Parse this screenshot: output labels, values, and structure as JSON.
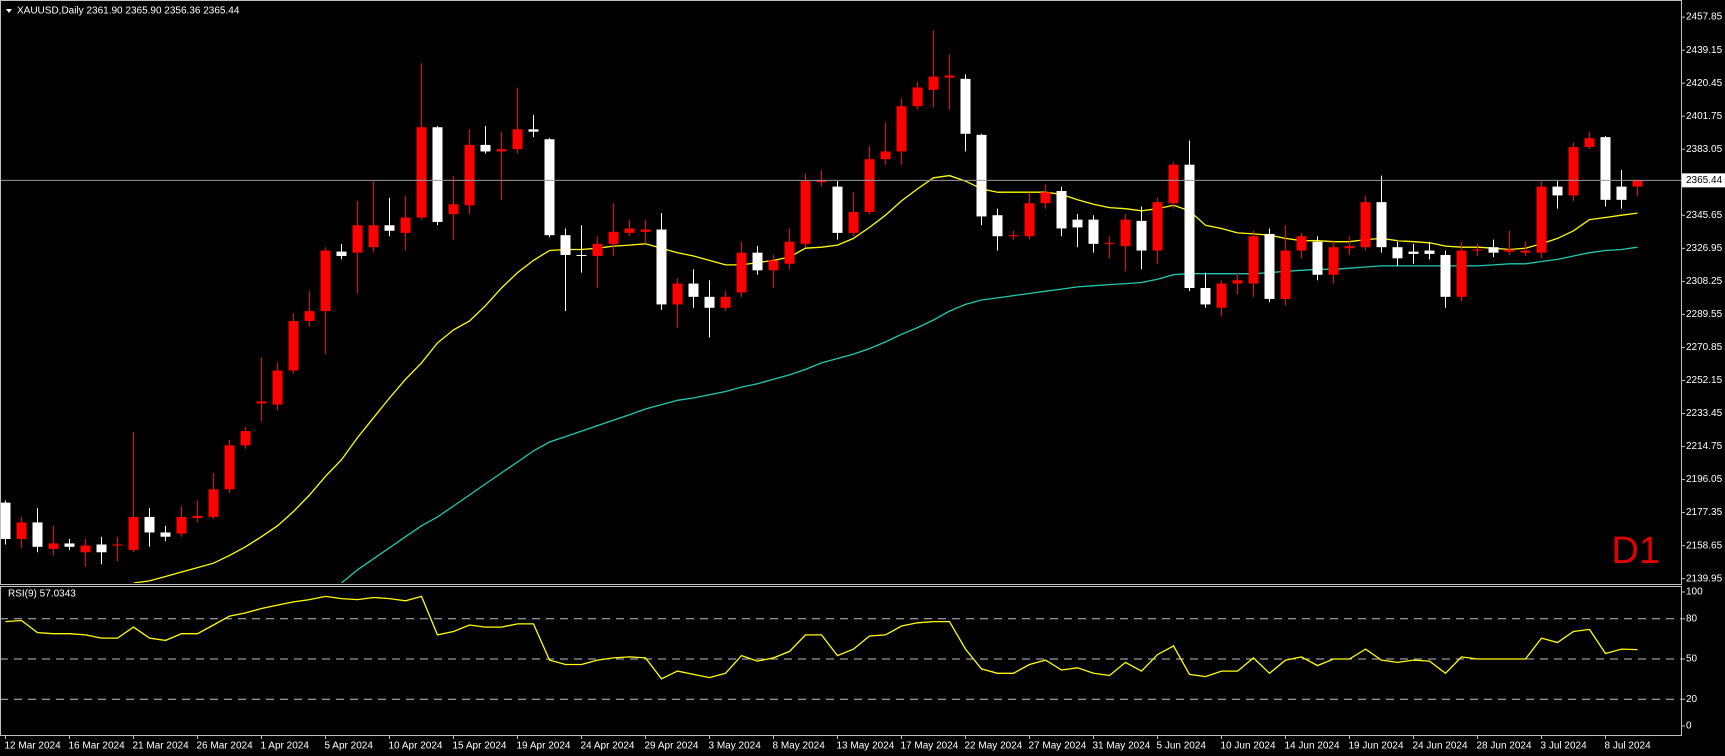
{
  "chart_data": [
    {
      "type": "candlestick",
      "title": "XAUUSD,Daily 2361.90 2365.90 2356.36 2365.44",
      "watermark": "D1",
      "categories": [
        "12 Mar 2024",
        null,
        null,
        null,
        "16 Mar 2024",
        null,
        null,
        null,
        "21 Mar 2024",
        null,
        null,
        null,
        "26 Mar 2024",
        null,
        null,
        null,
        "1 Apr 2024",
        null,
        null,
        null,
        "5 Apr 2024",
        null,
        null,
        null,
        "10 Apr 2024",
        null,
        null,
        null,
        "15 Apr 2024",
        null,
        null,
        null,
        "19 Apr 2024",
        null,
        null,
        null,
        "24 Apr 2024",
        null,
        null,
        null,
        "29 Apr 2024",
        null,
        null,
        null,
        "3 May 2024",
        null,
        null,
        null,
        "8 May 2024",
        null,
        null,
        null,
        "13 May 2024",
        null,
        null,
        null,
        "17 May 2024",
        null,
        null,
        null,
        "22 May 2024",
        null,
        null,
        null,
        "27 May 2024",
        null,
        null,
        null,
        "31 May 2024",
        null,
        null,
        null,
        "5 Jun 2024",
        null,
        null,
        null,
        "10 Jun 2024",
        null,
        null,
        null,
        "14 Jun 2024",
        null,
        null,
        null,
        "19 Jun 2024",
        null,
        null,
        null,
        "24 Jun 2024",
        null,
        null,
        null,
        "28 Jun 2024",
        null,
        null,
        null,
        "3 Jul 2024",
        null,
        null,
        null,
        "8 Jul 2024",
        null,
        null
      ],
      "open": [
        2183.0,
        2162.4,
        2171.8,
        2156.8,
        2159.9,
        2154.9,
        2159.3,
        2158.7,
        2156.2,
        2174.9,
        2166.1,
        2165.5,
        2174.3,
        2174.9,
        2190.5,
        2215.4,
        2239.1,
        2238.5,
        2257.8,
        2285.8,
        2291.4,
        2325.1,
        2324.5,
        2327.6,
        2340.0,
        2335.7,
        2344.4,
        2395.5,
        2346.3,
        2351.3,
        2385.5,
        2381.8,
        2383.1,
        2394.3,
        2388.7,
        2334.4,
        2323.2,
        2322.6,
        2329.5,
        2335.7,
        2336.3,
        2337.6,
        2295.2,
        2307.0,
        2299.5,
        2293.3,
        2302.0,
        2324.5,
        2314.5,
        2318.2,
        2329.5,
        2364.4,
        2361.9,
        2335.7,
        2347.5,
        2377.4,
        2381.8,
        2407.4,
        2416.7,
        2423.6,
        2422.9,
        2391.2,
        2345.7,
        2333.8,
        2333.8,
        2352.5,
        2359.4,
        2343.2,
        2343.2,
        2329.5,
        2328.2,
        2342.5,
        2325.7,
        2352.5,
        2374.3,
        2304.5,
        2293.3,
        2307.0,
        2307.0,
        2335.1,
        2298.3,
        2325.7,
        2330.7,
        2312.0,
        2327.0,
        2327.6,
        2353.1,
        2327.6,
        2325.1,
        2325.7,
        2323.2,
        2299.5,
        2325.7,
        2327.6,
        2325.1,
        2324.5,
        2324.5,
        2361.9,
        2356.9,
        2384.3,
        2389.9,
        2361.9,
        2361.9
      ],
      "high": [
        2184.2,
        2174.9,
        2179.9,
        2169.9,
        2162.4,
        2162.4,
        2163.7,
        2163.7,
        2222.9,
        2179.9,
        2169.9,
        2181.1,
        2184.2,
        2199.8,
        2218.5,
        2226.0,
        2265.3,
        2262.1,
        2290.2,
        2302.7,
        2327.6,
        2329.5,
        2353.8,
        2365.0,
        2355.6,
        2356.9,
        2431.7,
        2396.1,
        2368.1,
        2394.3,
        2396.1,
        2393.0,
        2418.0,
        2402.4,
        2389.3,
        2338.2,
        2340.0,
        2333.8,
        2352.5,
        2343.2,
        2343.2,
        2346.9,
        2310.1,
        2315.1,
        2308.9,
        2302.7,
        2330.7,
        2328.2,
        2323.2,
        2338.2,
        2369.3,
        2371.2,
        2365.0,
        2358.7,
        2384.9,
        2398.0,
        2411.7,
        2421.1,
        2450.4,
        2436.7,
        2425.4,
        2391.8,
        2349.4,
        2336.9,
        2358.7,
        2363.1,
        2361.9,
        2346.3,
        2345.7,
        2333.8,
        2346.3,
        2350.6,
        2355.6,
        2375.6,
        2388.0,
        2313.2,
        2308.9,
        2313.2,
        2336.9,
        2338.2,
        2340.0,
        2335.7,
        2333.8,
        2331.9,
        2333.8,
        2356.9,
        2368.1,
        2330.7,
        2329.5,
        2330.7,
        2325.7,
        2330.7,
        2329.5,
        2331.9,
        2336.9,
        2330.7,
        2365.0,
        2365.0,
        2386.8,
        2393.0,
        2390.5,
        2371.2,
        2365.9
      ],
      "low": [
        2159.3,
        2157.4,
        2154.9,
        2153.1,
        2156.2,
        2146.8,
        2148.1,
        2149.9,
        2154.9,
        2158.0,
        2161.2,
        2163.7,
        2171.8,
        2173.6,
        2188.6,
        2213.5,
        2229.1,
        2235.3,
        2255.9,
        2282.7,
        2267.1,
        2320.7,
        2301.4,
        2324.5,
        2333.8,
        2325.7,
        2343.2,
        2340.0,
        2331.9,
        2346.3,
        2380.6,
        2354.4,
        2380.6,
        2389.9,
        2333.2,
        2291.4,
        2313.2,
        2304.5,
        2322.6,
        2333.8,
        2329.5,
        2292.1,
        2282.1,
        2293.3,
        2276.5,
        2291.4,
        2299.5,
        2312.0,
        2304.5,
        2315.1,
        2327.6,
        2361.9,
        2331.9,
        2333.8,
        2346.3,
        2374.3,
        2374.3,
        2405.5,
        2406.7,
        2405.5,
        2381.8,
        2340.0,
        2325.7,
        2331.9,
        2331.9,
        2349.4,
        2333.8,
        2327.6,
        2324.5,
        2321.3,
        2313.9,
        2315.1,
        2318.2,
        2349.4,
        2302.7,
        2293.3,
        2288.3,
        2300.8,
        2299.5,
        2296.4,
        2294.5,
        2321.3,
        2308.9,
        2307.0,
        2323.2,
        2325.7,
        2324.5,
        2317.0,
        2318.2,
        2320.7,
        2293.3,
        2297.0,
        2322.6,
        2322.0,
        2323.2,
        2322.6,
        2321.3,
        2349.4,
        2353.8,
        2383.1,
        2350.6,
        2349.4,
        2356.36
      ],
      "close": [
        2162.4,
        2171.8,
        2158.0,
        2159.9,
        2158.0,
        2158.7,
        2154.9,
        2159.3,
        2174.9,
        2166.1,
        2163.7,
        2174.9,
        2175.5,
        2190.5,
        2215.4,
        2223.5,
        2240.3,
        2257.8,
        2285.8,
        2291.4,
        2325.7,
        2322.6,
        2340.0,
        2340.0,
        2336.9,
        2344.4,
        2395.5,
        2341.9,
        2351.9,
        2385.5,
        2381.8,
        2383.1,
        2394.3,
        2393.0,
        2334.4,
        2323.2,
        2322.6,
        2329.5,
        2336.3,
        2338.2,
        2337.6,
        2295.2,
        2307.0,
        2299.5,
        2293.3,
        2299.5,
        2324.5,
        2314.5,
        2320.1,
        2330.7,
        2365.0,
        2365.6,
        2335.7,
        2347.5,
        2377.4,
        2381.8,
        2407.4,
        2418.0,
        2424.2,
        2424.8,
        2391.8,
        2345.0,
        2333.8,
        2334.4,
        2352.5,
        2358.7,
        2338.2,
        2338.8,
        2329.5,
        2330.1,
        2343.2,
        2325.7,
        2353.1,
        2374.3,
        2304.5,
        2295.2,
        2307.0,
        2308.9,
        2333.8,
        2298.3,
        2325.7,
        2333.8,
        2312.0,
        2327.6,
        2328.2,
        2353.1,
        2327.6,
        2321.3,
        2323.8,
        2323.8,
        2299.5,
        2325.7,
        2326.3,
        2324.5,
        2326.3,
        2325.7,
        2361.9,
        2356.9,
        2384.3,
        2389.3,
        2354.4,
        2354.4,
        2365.44
      ],
      "up_color": "#ff0000",
      "down_color": "#ffffff",
      "lines": [
        {
          "color": "#ffff00",
          "values": [
            null,
            null,
            null,
            null,
            null,
            null,
            null,
            null,
            2137.5,
            2138.7,
            2141.2,
            2143.7,
            2146.2,
            2148.7,
            2153.1,
            2158.0,
            2163.7,
            2169.9,
            2178.0,
            2187.3,
            2197.9,
            2207.3,
            2219.8,
            2231.0,
            2242.2,
            2252.8,
            2262.1,
            2273.4,
            2280.8,
            2285.8,
            2294.5,
            2304.5,
            2313.2,
            2320.1,
            2325.7,
            2326.3,
            2326.3,
            2327.0,
            2328.2,
            2328.8,
            2329.5,
            2327.0,
            2324.5,
            2322.6,
            2320.1,
            2317.6,
            2317.6,
            2318.9,
            2320.1,
            2322.0,
            2327.0,
            2327.6,
            2328.8,
            2332.6,
            2338.8,
            2345.7,
            2353.8,
            2360.6,
            2366.9,
            2368.1,
            2365.0,
            2360.6,
            2358.7,
            2358.7,
            2358.7,
            2358.7,
            2357.5,
            2354.4,
            2351.9,
            2350.0,
            2349.4,
            2348.2,
            2349.4,
            2351.3,
            2348.2,
            2340.0,
            2338.2,
            2335.7,
            2335.1,
            2334.4,
            2332.6,
            2331.3,
            2331.3,
            2330.7,
            2330.7,
            2331.9,
            2332.6,
            2331.3,
            2330.7,
            2330.1,
            2328.2,
            2327.6,
            2327.6,
            2327.0,
            2326.3,
            2327.0,
            2329.5,
            2332.6,
            2336.9,
            2343.2,
            2344.4,
            2345.7,
            2346.9
          ]
        },
        {
          "color": "#20c8b0",
          "values": [
            null,
            null,
            null,
            null,
            null,
            null,
            null,
            null,
            null,
            null,
            null,
            null,
            null,
            null,
            null,
            null,
            null,
            null,
            null,
            null,
            null,
            2137.5,
            2145.0,
            2151.2,
            2157.4,
            2163.7,
            2169.9,
            2174.9,
            2181.1,
            2187.3,
            2193.6,
            2199.8,
            2206.0,
            2212.3,
            2217.3,
            2220.4,
            2223.5,
            2226.6,
            2229.7,
            2232.8,
            2236.0,
            2238.5,
            2240.9,
            2242.2,
            2244.1,
            2245.9,
            2248.4,
            2250.3,
            2252.8,
            2255.3,
            2258.4,
            2262.1,
            2264.6,
            2267.1,
            2270.2,
            2274.0,
            2278.3,
            2282.1,
            2286.4,
            2291.4,
            2295.2,
            2297.7,
            2298.9,
            2300.2,
            2301.4,
            2302.7,
            2303.9,
            2305.1,
            2305.8,
            2306.4,
            2307.0,
            2307.6,
            2309.5,
            2312.0,
            2312.6,
            2312.6,
            2312.6,
            2312.6,
            2312.6,
            2313.2,
            2313.9,
            2314.5,
            2315.1,
            2315.1,
            2315.7,
            2316.4,
            2317.0,
            2317.0,
            2317.0,
            2317.0,
            2317.0,
            2317.0,
            2317.0,
            2317.6,
            2318.2,
            2318.2,
            2319.5,
            2320.7,
            2322.6,
            2324.5,
            2325.7,
            2326.3,
            2327.6
          ]
        }
      ],
      "last_price": 2365.44,
      "ylim": [
        2137.5,
        2464.7
      ],
      "yticks": [
        2139.95,
        2158.65,
        2177.35,
        2196.05,
        2214.75,
        2233.45,
        2252.15,
        2270.85,
        2289.55,
        2308.25,
        2326.95,
        2345.65,
        2383.05,
        2401.75,
        2420.45,
        2439.15,
        2457.85
      ]
    },
    {
      "type": "line",
      "title": "RSI(9) 57.0343",
      "color": "#ffff00",
      "values": [
        77.9,
        78.7,
        69.7,
        68.9,
        68.9,
        68.0,
        65.6,
        65.6,
        73.8,
        65.6,
        63.9,
        68.9,
        68.9,
        75.4,
        82.0,
        84.4,
        87.7,
        90.2,
        92.6,
        94.3,
        96.7,
        95.1,
        94.3,
        95.9,
        95.1,
        93.4,
        96.7,
        68.0,
        70.5,
        75.4,
        73.8,
        73.8,
        76.2,
        76.2,
        49.2,
        45.9,
        45.9,
        49.2,
        50.8,
        51.6,
        50.8,
        35.2,
        41.0,
        38.5,
        36.1,
        39.3,
        52.5,
        48.4,
        50.8,
        55.7,
        68.0,
        68.0,
        52.5,
        57.4,
        67.2,
        68.0,
        74.6,
        77.0,
        77.9,
        77.9,
        57.4,
        42.6,
        39.3,
        39.3,
        45.9,
        49.2,
        41.8,
        43.4,
        39.3,
        37.7,
        47.5,
        41.0,
        53.3,
        59.8,
        38.5,
        36.9,
        41.0,
        41.0,
        50.8,
        39.3,
        49.2,
        51.6,
        45.1,
        50.0,
        50.0,
        57.4,
        49.2,
        47.5,
        49.2,
        48.4,
        39.3,
        51.6,
        50.0,
        50.0,
        50.0,
        50.0,
        65.6,
        62.3,
        70.5,
        72.1,
        54.1,
        57.4,
        57.0
      ],
      "ylim": [
        0,
        100
      ],
      "yticks": [
        100,
        80,
        50,
        20,
        0
      ],
      "grid": true
    }
  ]
}
